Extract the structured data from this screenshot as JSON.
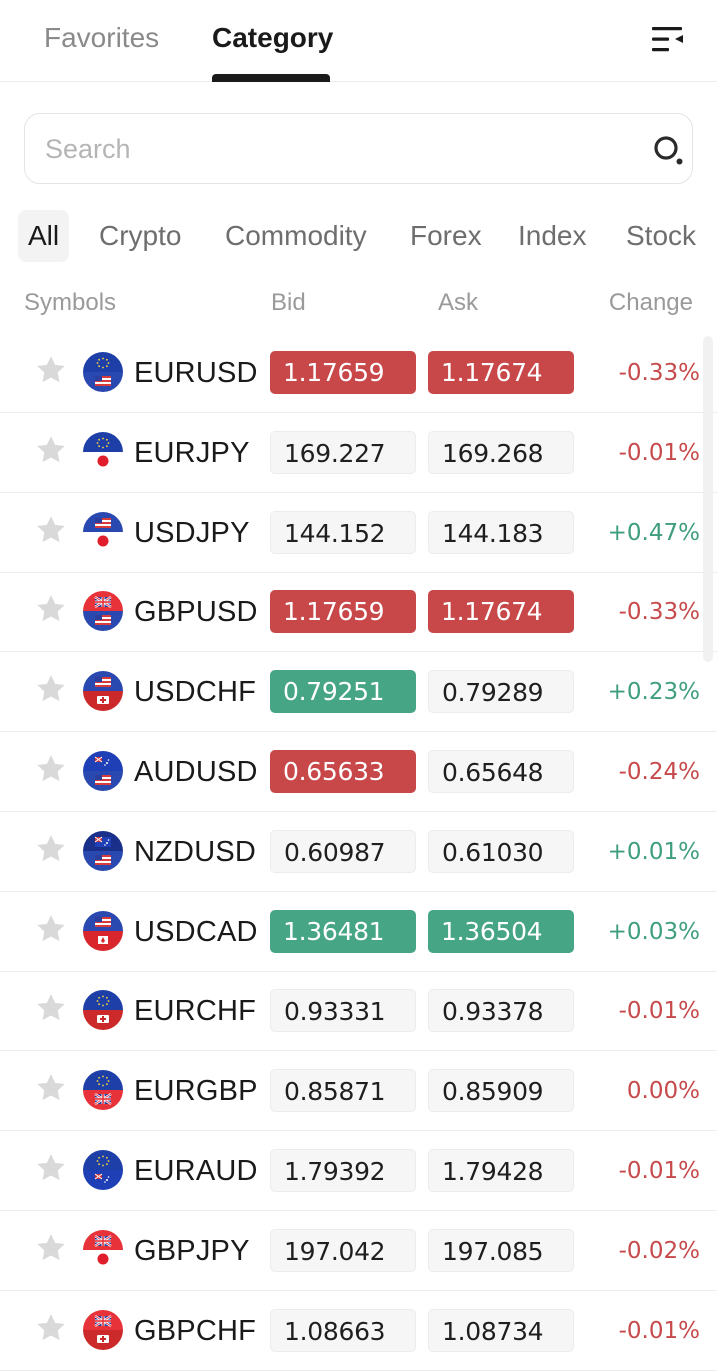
{
  "top_tabs": [
    {
      "label": "Favorites",
      "active": false
    },
    {
      "label": "Category",
      "active": true
    }
  ],
  "menu_icon": "collapse-menu-icon",
  "search": {
    "placeholder": "Search",
    "value": "",
    "icon": "search-icon"
  },
  "filters": [
    {
      "label": "All",
      "active": true
    },
    {
      "label": "Crypto",
      "active": false
    },
    {
      "label": "Commodity",
      "active": false
    },
    {
      "label": "Forex",
      "active": false
    },
    {
      "label": "Index",
      "active": false
    },
    {
      "label": "Stock",
      "active": false
    }
  ],
  "columns": {
    "symbols": "Symbols",
    "bid": "Bid",
    "ask": "Ask",
    "change": "Change"
  },
  "colors": {
    "down": "#c8484a",
    "up": "#45a584",
    "neg_text": "#c64a4c",
    "pos_text": "#3f9e7c",
    "star": "#d8d8d8"
  },
  "rows": [
    {
      "symbol": "EURUSD",
      "flags": [
        "eu",
        "us"
      ],
      "bid": "1.17659",
      "bid_state": "down",
      "ask": "1.17674",
      "ask_state": "down",
      "change": "-0.33%",
      "change_dir": "neg"
    },
    {
      "symbol": "EURJPY",
      "flags": [
        "eu",
        "jp"
      ],
      "bid": "169.227",
      "bid_state": "neutral",
      "ask": "169.268",
      "ask_state": "neutral",
      "change": "-0.01%",
      "change_dir": "neg"
    },
    {
      "symbol": "USDJPY",
      "flags": [
        "us",
        "jp"
      ],
      "bid": "144.152",
      "bid_state": "neutral",
      "ask": "144.183",
      "ask_state": "neutral",
      "change": "+0.47%",
      "change_dir": "pos"
    },
    {
      "symbol": "GBPUSD",
      "flags": [
        "gb",
        "us"
      ],
      "bid": "1.17659",
      "bid_state": "down",
      "ask": "1.17674",
      "ask_state": "down",
      "change": "-0.33%",
      "change_dir": "neg"
    },
    {
      "symbol": "USDCHF",
      "flags": [
        "us",
        "ch"
      ],
      "bid": "0.79251",
      "bid_state": "up",
      "ask": "0.79289",
      "ask_state": "neutral",
      "change": "+0.23%",
      "change_dir": "pos"
    },
    {
      "symbol": "AUDUSD",
      "flags": [
        "au",
        "us"
      ],
      "bid": "0.65633",
      "bid_state": "down",
      "ask": "0.65648",
      "ask_state": "neutral",
      "change": "-0.24%",
      "change_dir": "neg"
    },
    {
      "symbol": "NZDUSD",
      "flags": [
        "nz",
        "us"
      ],
      "bid": "0.60987",
      "bid_state": "neutral",
      "ask": "0.61030",
      "ask_state": "neutral",
      "change": "+0.01%",
      "change_dir": "pos"
    },
    {
      "symbol": "USDCAD",
      "flags": [
        "us",
        "ca"
      ],
      "bid": "1.36481",
      "bid_state": "up",
      "ask": "1.36504",
      "ask_state": "up",
      "change": "+0.03%",
      "change_dir": "pos"
    },
    {
      "symbol": "EURCHF",
      "flags": [
        "eu",
        "ch"
      ],
      "bid": "0.93331",
      "bid_state": "neutral",
      "ask": "0.93378",
      "ask_state": "neutral",
      "change": "-0.01%",
      "change_dir": "neg"
    },
    {
      "symbol": "EURGBP",
      "flags": [
        "eu",
        "gb"
      ],
      "bid": "0.85871",
      "bid_state": "neutral",
      "ask": "0.85909",
      "ask_state": "neutral",
      "change": "0.00%",
      "change_dir": "neg"
    },
    {
      "symbol": "EURAUD",
      "flags": [
        "eu",
        "au"
      ],
      "bid": "1.79392",
      "bid_state": "neutral",
      "ask": "1.79428",
      "ask_state": "neutral",
      "change": "-0.01%",
      "change_dir": "neg"
    },
    {
      "symbol": "GBPJPY",
      "flags": [
        "gb",
        "jp"
      ],
      "bid": "197.042",
      "bid_state": "neutral",
      "ask": "197.085",
      "ask_state": "neutral",
      "change": "-0.02%",
      "change_dir": "neg"
    },
    {
      "symbol": "GBPCHF",
      "flags": [
        "gb",
        "ch"
      ],
      "bid": "1.08663",
      "bid_state": "neutral",
      "ask": "1.08734",
      "ask_state": "neutral",
      "change": "-0.01%",
      "change_dir": "neg"
    }
  ]
}
